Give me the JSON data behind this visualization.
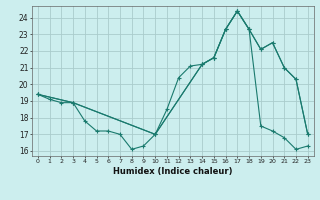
{
  "xlabel": "Humidex (Indice chaleur)",
  "bg_color": "#cceeee",
  "grid_color": "#aacccc",
  "line_color": "#1a7a6e",
  "xlim": [
    -0.5,
    23.5
  ],
  "ylim": [
    15.7,
    24.7
  ],
  "yticks": [
    16,
    17,
    18,
    19,
    20,
    21,
    22,
    23,
    24
  ],
  "xticks": [
    0,
    1,
    2,
    3,
    4,
    5,
    6,
    7,
    8,
    9,
    10,
    11,
    12,
    13,
    14,
    15,
    16,
    17,
    18,
    19,
    20,
    21,
    22,
    23
  ],
  "line1_x": [
    0,
    1,
    2,
    3,
    4,
    5,
    6,
    7,
    8,
    9,
    10,
    11,
    12,
    13,
    14,
    15,
    16,
    17,
    18,
    19,
    20,
    21,
    22,
    23
  ],
  "line1_y": [
    19.4,
    19.1,
    18.9,
    18.9,
    17.8,
    17.2,
    17.2,
    17.0,
    16.1,
    16.3,
    17.0,
    18.5,
    20.4,
    21.1,
    21.2,
    21.6,
    23.3,
    24.4,
    23.3,
    22.1,
    22.5,
    21.0,
    20.3,
    17.0
  ],
  "line2_x": [
    0,
    3,
    10,
    14,
    15,
    16,
    17,
    18,
    19,
    20,
    21,
    22,
    23
  ],
  "line2_y": [
    19.4,
    18.9,
    17.0,
    21.2,
    21.6,
    23.3,
    24.4,
    23.3,
    22.1,
    22.5,
    21.0,
    20.3,
    17.0
  ],
  "line3_x": [
    0,
    3,
    10,
    14,
    15,
    16,
    17,
    18,
    19,
    20,
    21,
    22,
    23
  ],
  "line3_y": [
    19.4,
    18.9,
    17.0,
    21.2,
    21.6,
    23.3,
    24.4,
    23.3,
    17.5,
    17.2,
    16.8,
    16.1,
    16.3
  ]
}
